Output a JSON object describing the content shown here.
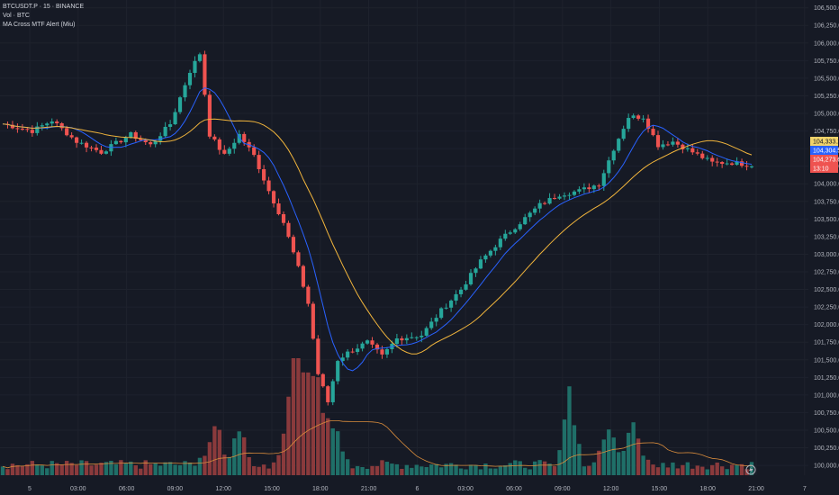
{
  "legend": {
    "symbol_line": "BTCUSDT.P · 15 · BINANCE",
    "volume_line": "Vol · BTC",
    "indicator_line": "MA Cross MTF Alert (Miu)"
  },
  "colors": {
    "background": "#161a25",
    "up": "#26a69a",
    "down": "#ef5350",
    "up_volume": "#1f6f68",
    "down_volume": "#8a3a3c",
    "fast_ma": "#2962ff",
    "slow_ma": "#f0b43c",
    "grid": "#1e222d"
  },
  "price_tags": [
    {
      "label": "104,333.2",
      "bg": "#f0d36b",
      "fg": "#131722"
    },
    {
      "label": "104,304.5",
      "bg": "#2962ff",
      "fg": "#ffffff"
    },
    {
      "label": "104,273.6",
      "bg": "#ef5350",
      "fg": "#ffffff"
    },
    {
      "label": "13:10",
      "bg": "#ef5350",
      "fg": "#ffffff"
    }
  ],
  "time_axis_icon": "lightning-icon",
  "chart_data": {
    "type": "candlestick",
    "interval": "15",
    "y_axis": {
      "ticks": [
        "106,500.0",
        "106,250.0",
        "106,000.0",
        "105,750.0",
        "105,500.0",
        "105,250.0",
        "105,000.0",
        "104,750.0",
        "104,500.0",
        "104,250.0",
        "104,000.0",
        "103,750.0",
        "103,500.0",
        "103,250.0",
        "103,000.0",
        "102,750.0",
        "102,500.0",
        "102,250.0",
        "102,000.0",
        "101,750.0",
        "101,500.0",
        "101,250.0",
        "101,000.0",
        "100,750.0",
        "100,500.0",
        "100,250.0",
        "100,000.0"
      ],
      "range": [
        99950,
        106560
      ],
      "position": "right"
    },
    "x_axis": {
      "ticks": [
        "5",
        "03:00",
        "06:00",
        "09:00",
        "12:00",
        "15:00",
        "18:00",
        "21:00",
        "6",
        "03:00",
        "06:00",
        "09:00",
        "12:00",
        "15:00",
        "18:00",
        "21:00",
        "7"
      ]
    },
    "grid": true,
    "anchors": [
      {
        "t": 0,
        "p": 104850
      },
      {
        "t": 6,
        "p": 104750
      },
      {
        "t": 10,
        "p": 104900
      },
      {
        "t": 15,
        "p": 104600
      },
      {
        "t": 20,
        "p": 104450
      },
      {
        "t": 26,
        "p": 104700
      },
      {
        "t": 30,
        "p": 104550
      },
      {
        "t": 34,
        "p": 104850
      },
      {
        "t": 38,
        "p": 105600
      },
      {
        "t": 40,
        "p": 105850
      },
      {
        "t": 42,
        "p": 104700
      },
      {
        "t": 45,
        "p": 104400
      },
      {
        "t": 48,
        "p": 104700
      },
      {
        "t": 51,
        "p": 104400
      },
      {
        "t": 54,
        "p": 103900
      },
      {
        "t": 57,
        "p": 103450
      },
      {
        "t": 60,
        "p": 102800
      },
      {
        "t": 62,
        "p": 102300
      },
      {
        "t": 64,
        "p": 101300
      },
      {
        "t": 66,
        "p": 100900
      },
      {
        "t": 68,
        "p": 101500
      },
      {
        "t": 70,
        "p": 101600
      },
      {
        "t": 74,
        "p": 101750
      },
      {
        "t": 77,
        "p": 101550
      },
      {
        "t": 80,
        "p": 101800
      },
      {
        "t": 85,
        "p": 101850
      },
      {
        "t": 89,
        "p": 102200
      },
      {
        "t": 93,
        "p": 102500
      },
      {
        "t": 97,
        "p": 102900
      },
      {
        "t": 101,
        "p": 103200
      },
      {
        "t": 105,
        "p": 103450
      },
      {
        "t": 109,
        "p": 103700
      },
      {
        "t": 113,
        "p": 103850
      },
      {
        "t": 117,
        "p": 103900
      },
      {
        "t": 121,
        "p": 104000
      },
      {
        "t": 124,
        "p": 104500
      },
      {
        "t": 127,
        "p": 104950
      },
      {
        "t": 130,
        "p": 104950
      },
      {
        "t": 133,
        "p": 104550
      },
      {
        "t": 136,
        "p": 104600
      },
      {
        "t": 140,
        "p": 104450
      },
      {
        "t": 144,
        "p": 104300
      },
      {
        "t": 148,
        "p": 104300
      },
      {
        "t": 152,
        "p": 104270
      }
    ],
    "volume_peaks": [
      {
        "t": 43,
        "v": 0.45
      },
      {
        "t": 48,
        "v": 0.35
      },
      {
        "t": 58,
        "v": 0.55
      },
      {
        "t": 60,
        "v": 1.0
      },
      {
        "t": 62,
        "v": 0.55
      },
      {
        "t": 64,
        "v": 0.6
      },
      {
        "t": 67,
        "v": 0.45
      },
      {
        "t": 115,
        "v": 0.7
      },
      {
        "t": 123,
        "v": 0.5
      },
      {
        "t": 128,
        "v": 0.4
      }
    ]
  }
}
